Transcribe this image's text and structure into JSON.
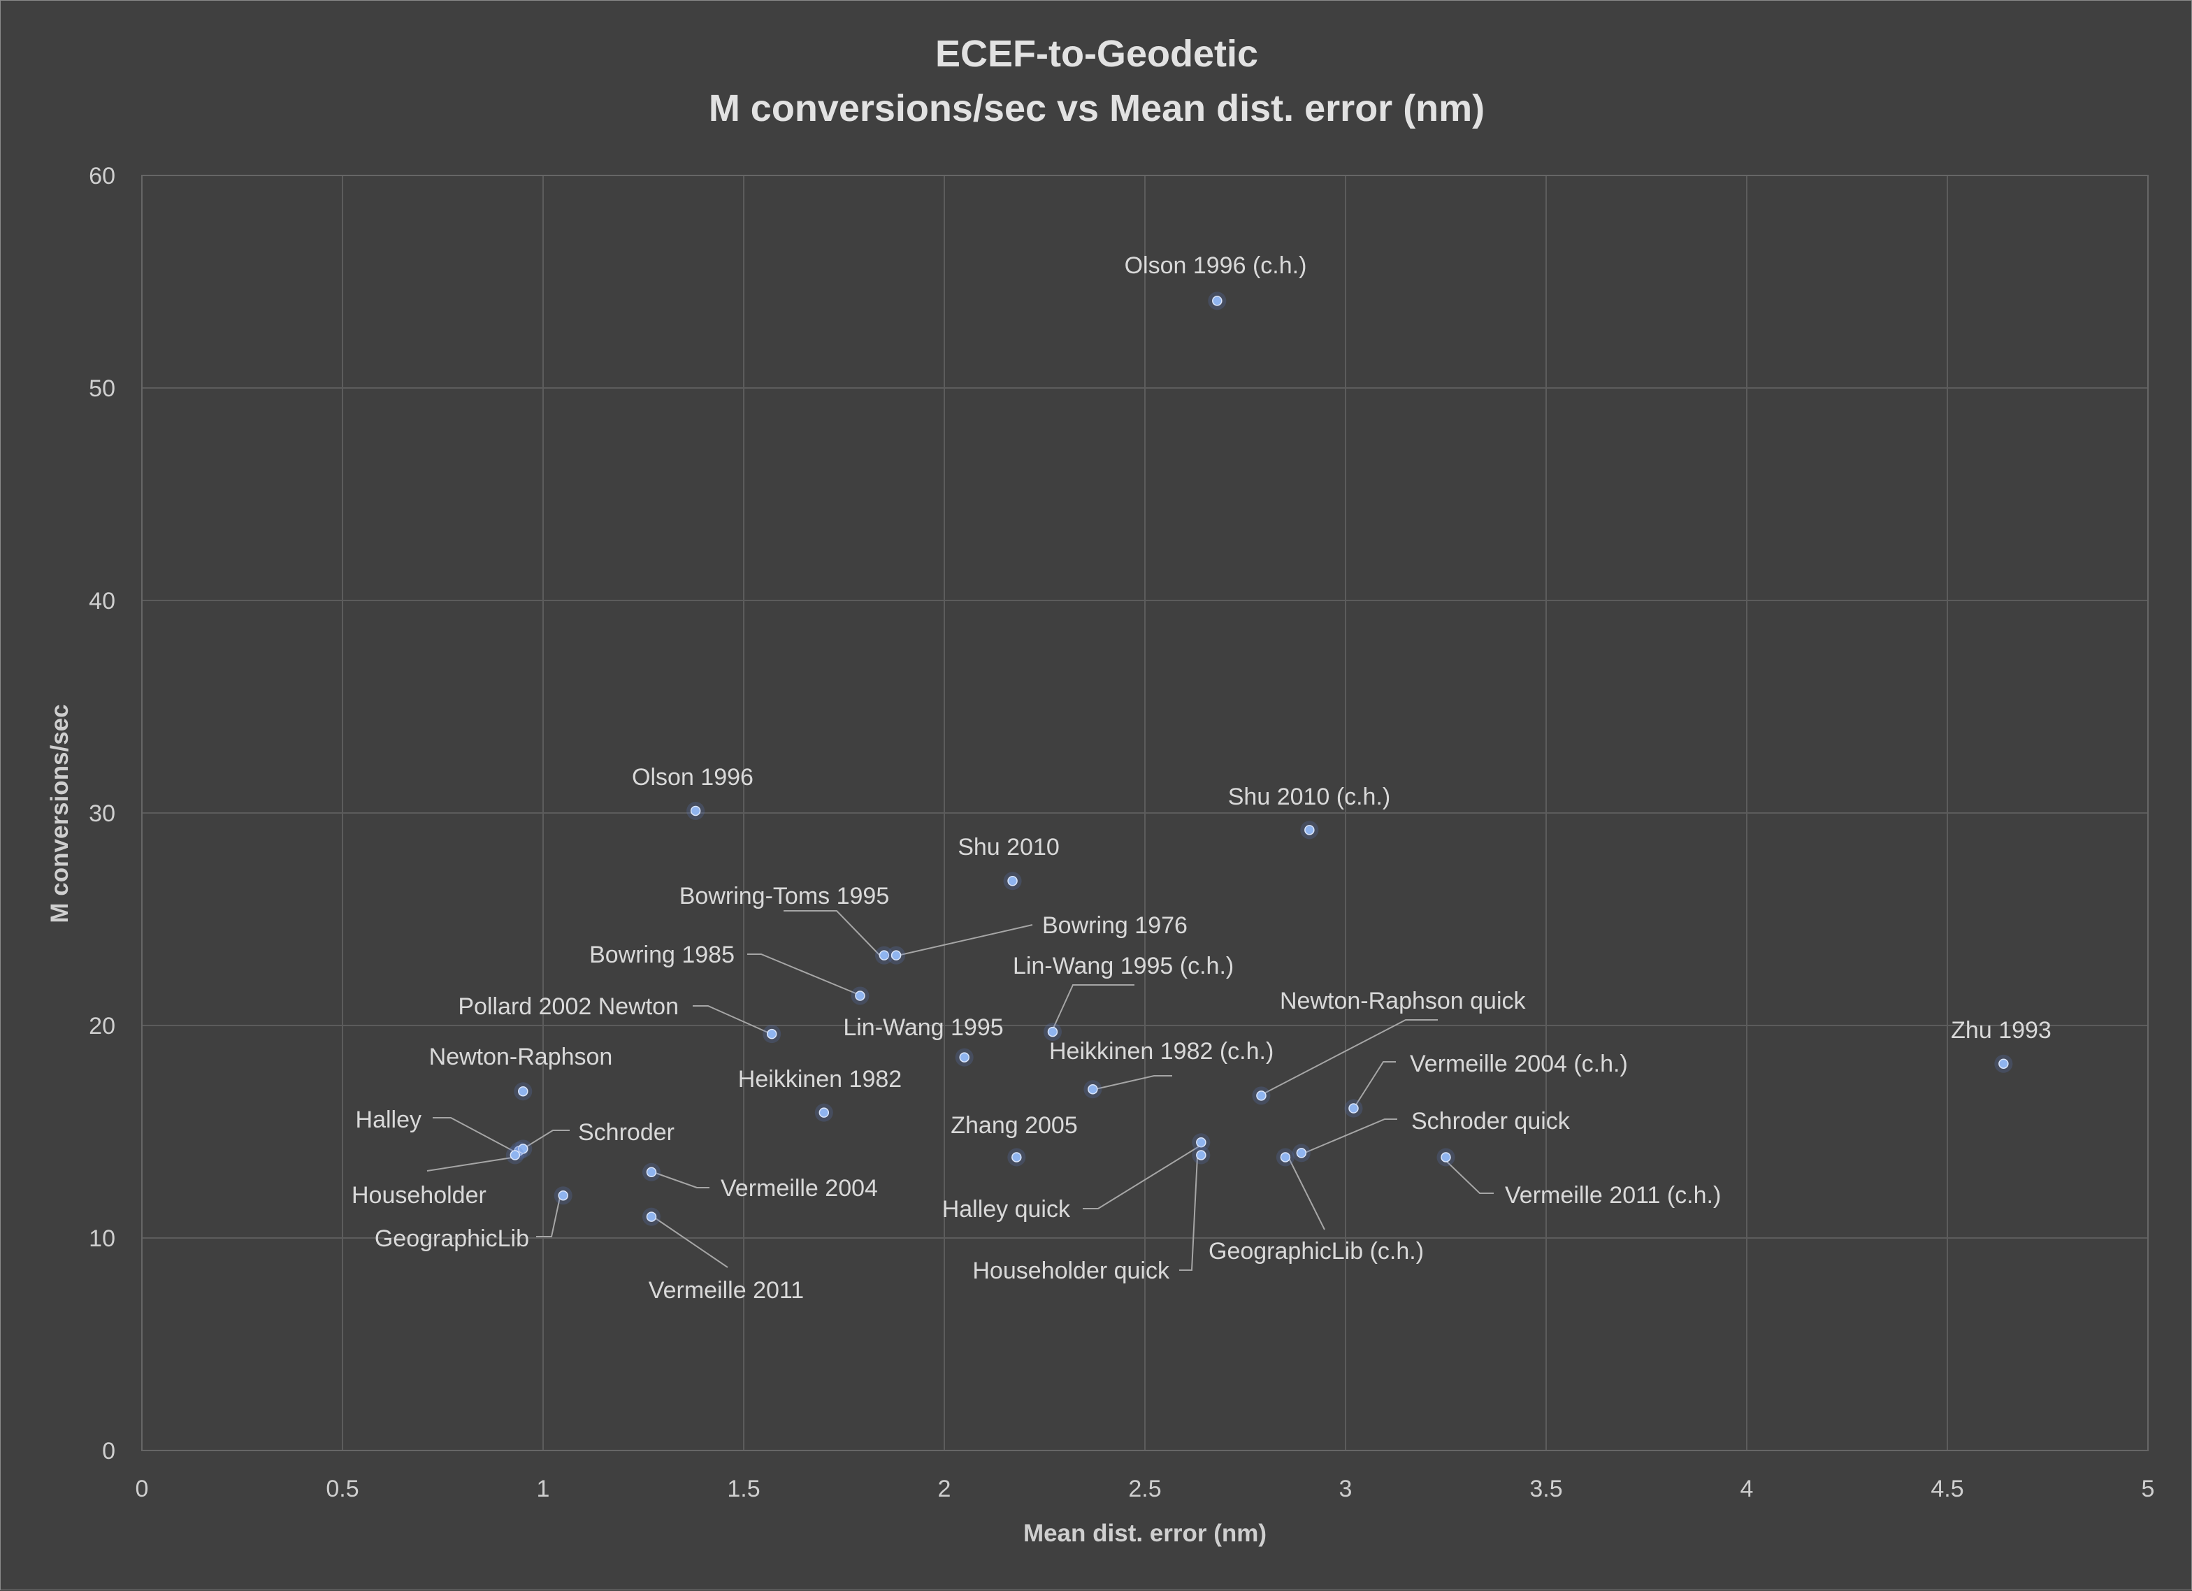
{
  "chart_data": {
    "type": "scatter",
    "title": [
      "ECEF-to-Geodetic",
      "M conversions/sec vs Mean dist. error (nm)"
    ],
    "xlabel": "Mean dist. error (nm)",
    "ylabel": "M conversions/sec",
    "xlim": [
      0,
      5
    ],
    "ylim": [
      0,
      60
    ],
    "xticks": [
      0,
      0.5,
      1,
      1.5,
      2,
      2.5,
      3,
      3.5,
      4,
      4.5,
      5
    ],
    "xtick_labels": [
      "0",
      "0.5",
      "1",
      "1.5",
      "2",
      "2.5",
      "3",
      "3.5",
      "4",
      "4.5",
      "5"
    ],
    "yticks": [
      0,
      10,
      20,
      30,
      40,
      50,
      60
    ],
    "ytick_labels": [
      "0",
      "10",
      "20",
      "30",
      "40",
      "50",
      "60"
    ],
    "grid": true,
    "marker_color": "#8fb4ef",
    "points": [
      {
        "label": "Olson 1996 (c.h.)",
        "x": 2.68,
        "y": 54.1
      },
      {
        "label": "Olson 1996",
        "x": 1.38,
        "y": 30.1
      },
      {
        "label": "Shu 2010 (c.h.)",
        "x": 2.91,
        "y": 29.2
      },
      {
        "label": "Shu 2010",
        "x": 2.17,
        "y": 26.8
      },
      {
        "label": "Bowring-Toms 1995",
        "x": 1.85,
        "y": 23.3
      },
      {
        "label": "Bowring 1976",
        "x": 1.88,
        "y": 23.3
      },
      {
        "label": "Bowring 1985",
        "x": 1.79,
        "y": 21.4
      },
      {
        "label": "Lin-Wang 1995 (c.h.)",
        "x": 2.27,
        "y": 19.7
      },
      {
        "label": "Pollard 2002 Newton",
        "x": 1.57,
        "y": 19.6
      },
      {
        "label": "Lin-Wang 1995",
        "x": 2.05,
        "y": 18.5
      },
      {
        "label": "Zhu 1993",
        "x": 4.64,
        "y": 18.2
      },
      {
        "label": "Newton-Raphson",
        "x": 0.95,
        "y": 16.9
      },
      {
        "label": "Heikkinen 1982 (c.h.)",
        "x": 2.37,
        "y": 17.0
      },
      {
        "label": "Newton-Raphson quick",
        "x": 2.79,
        "y": 16.7
      },
      {
        "label": "Vermeille 2004 (c.h.)",
        "x": 3.02,
        "y": 16.1
      },
      {
        "label": "Heikkinen 1982",
        "x": 1.7,
        "y": 15.9
      },
      {
        "label": "Halley",
        "x": 0.94,
        "y": 14.1
      },
      {
        "label": "Schroder",
        "x": 0.95,
        "y": 14.2
      },
      {
        "label": "Householder",
        "x": 0.93,
        "y": 13.9
      },
      {
        "label": "Zhang 2005",
        "x": 2.18,
        "y": 13.8
      },
      {
        "label": "Halley quick",
        "x": 2.64,
        "y": 14.5
      },
      {
        "label": "Householder quick",
        "x": 2.64,
        "y": 13.9
      },
      {
        "label": "GeographicLib (c.h.)",
        "x": 2.85,
        "y": 13.8
      },
      {
        "label": "Schroder quick",
        "x": 2.89,
        "y": 14.0
      },
      {
        "label": "Vermeille 2011 (c.h.)",
        "x": 3.25,
        "y": 13.8
      },
      {
        "label": "Vermeille 2004",
        "x": 1.27,
        "y": 13.1
      },
      {
        "label": "GeographicLib",
        "x": 1.05,
        "y": 12.0
      },
      {
        "label": "Vermeille 2011",
        "x": 1.27,
        "y": 11.0
      }
    ]
  }
}
